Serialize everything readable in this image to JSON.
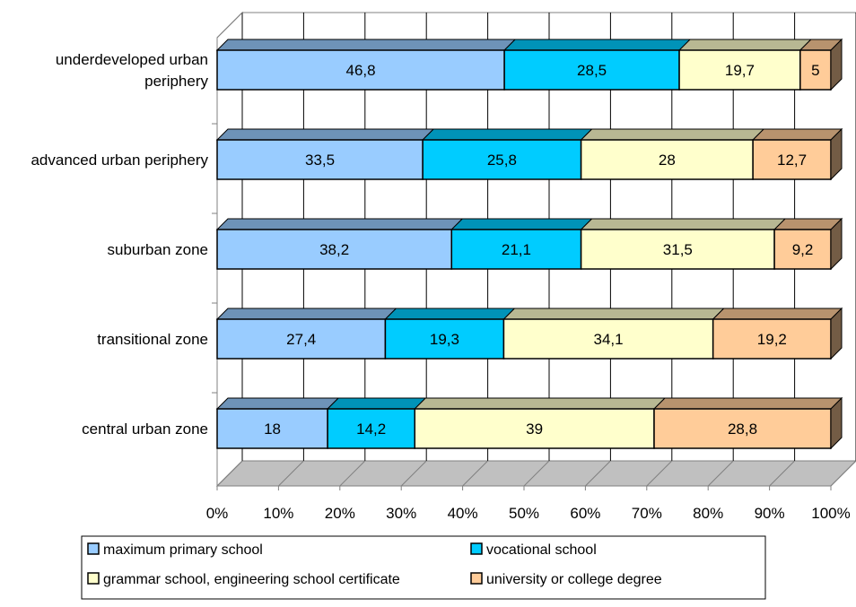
{
  "chart_data": {
    "type": "bar",
    "stacked": "percent",
    "orientation": "horizontal",
    "three_d": true,
    "categories": [
      "underdeveloped urban periphery",
      "advanced urban periphery",
      "suburban zone",
      "transitional zone",
      "central urban zone"
    ],
    "category_label_lines": [
      [
        "underdeveloped urban",
        "periphery"
      ],
      [
        "advanced urban periphery"
      ],
      [
        "suburban zone"
      ],
      [
        "transitional zone"
      ],
      [
        "central urban zone"
      ]
    ],
    "series": [
      {
        "name": "maximum primary school",
        "values": [
          46.8,
          33.5,
          38.2,
          27.4,
          18
        ],
        "labels": [
          "46,8",
          "33,5",
          "38,2",
          "27,4",
          "18"
        ],
        "color": "#99ccff"
      },
      {
        "name": "vocational school",
        "values": [
          28.5,
          25.8,
          21.1,
          19.3,
          14.2
        ],
        "labels": [
          "28,5",
          "25,8",
          "21,1",
          "19,3",
          "14,2"
        ],
        "color": "#00ccff"
      },
      {
        "name": "grammar school, engineering school certificate",
        "values": [
          19.7,
          28,
          31.5,
          34.1,
          39
        ],
        "labels": [
          "19,7",
          "28",
          "31,5",
          "34,1",
          "39"
        ],
        "color": "#ffffcc"
      },
      {
        "name": "university or college degree",
        "values": [
          5,
          12.7,
          9.2,
          19.2,
          28.8
        ],
        "labels": [
          "5",
          "12,7",
          "9,2",
          "19,2",
          "28,8"
        ],
        "color": "#ffcc99"
      }
    ],
    "x_ticks": [
      "0%",
      "10%",
      "20%",
      "30%",
      "40%",
      "50%",
      "60%",
      "70%",
      "80%",
      "90%",
      "100%"
    ],
    "xlim": [
      0,
      100
    ],
    "grid": true,
    "legend_position": "bottom",
    "title": "",
    "xlabel": "",
    "ylabel": ""
  }
}
